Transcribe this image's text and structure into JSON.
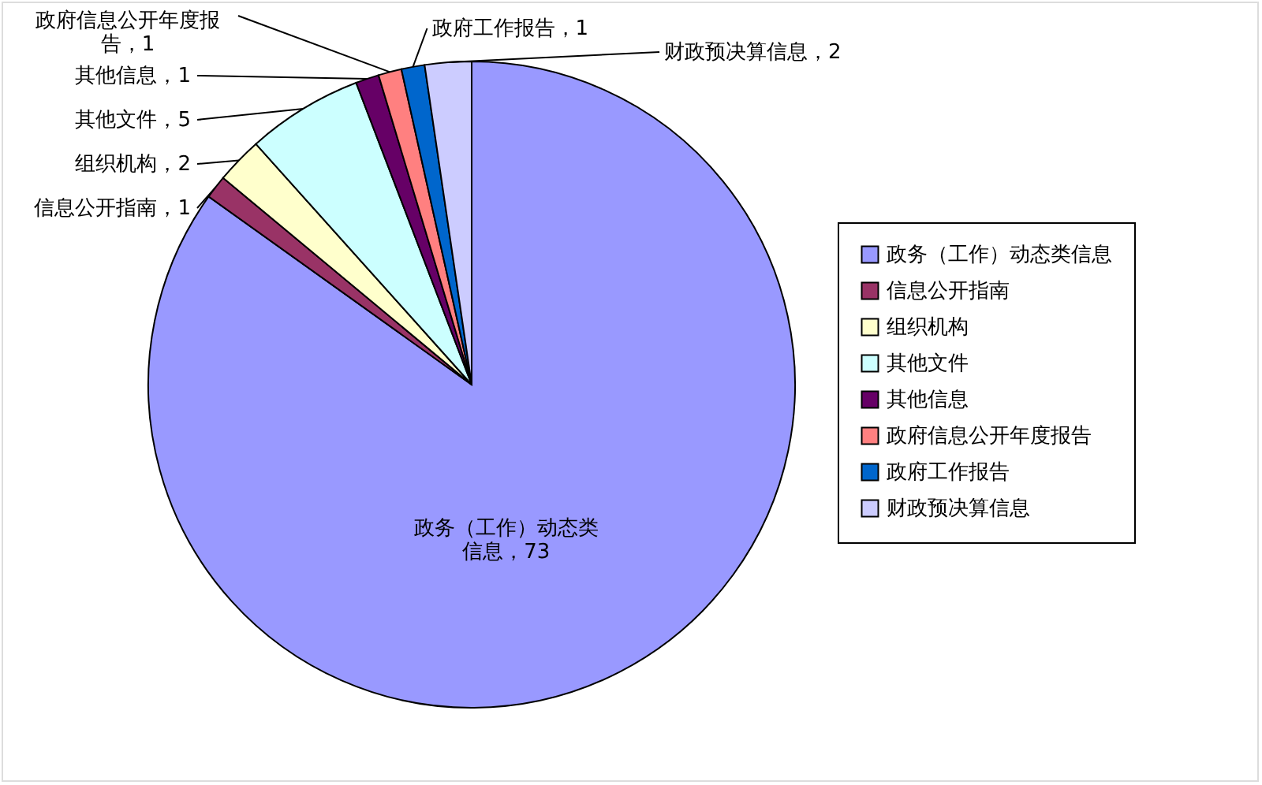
{
  "chart_data": {
    "type": "pie",
    "categories": [
      "政务（工作）动态类信息",
      "信息公开指南",
      "组织机构",
      "其他文件",
      "其他信息",
      "政府信息公开年度报告",
      "政府工作报告",
      "财政预决算信息"
    ],
    "values": [
      73,
      1,
      2,
      5,
      1,
      1,
      1,
      2
    ],
    "colors": [
      "#9999ff",
      "#993366",
      "#ffffcc",
      "#ccffff",
      "#660066",
      "#ff8080",
      "#0066cc",
      "#ccccff"
    ],
    "value_labels": [
      "政务（工作）动态类信息，73",
      "信息公开指南，1",
      "组织机构，2",
      "其他文件，5",
      "其他信息，1",
      "政府信息公开年度报告，1",
      "政府工作报告，1",
      "财政预决算信息，2"
    ],
    "legend": "right"
  }
}
